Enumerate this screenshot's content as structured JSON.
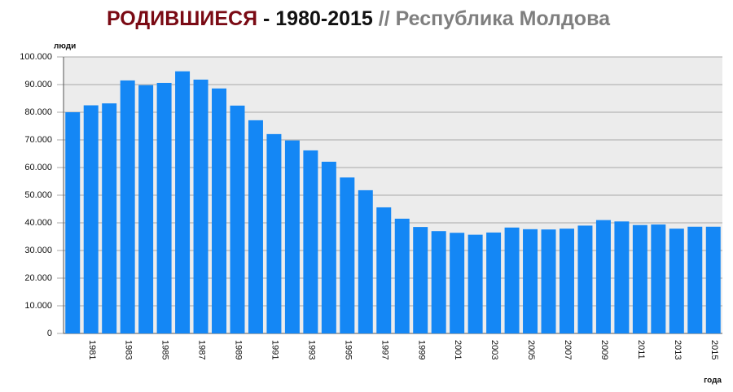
{
  "chart_data": {
    "type": "bar",
    "title": [
      "РОДИВШИЕСЯ",
      "- 1980-2015",
      "// Республика Молдова"
    ],
    "title_colors": [
      "#7a0a14",
      "#111111",
      "#7f7f7f"
    ],
    "y_label": "люди",
    "x_label": "года",
    "categories": [
      null,
      "1981",
      null,
      "1983",
      null,
      "1985",
      null,
      "1987",
      null,
      "1989",
      null,
      "1991",
      null,
      "1993",
      null,
      "1995",
      null,
      "1997",
      null,
      "1999",
      null,
      "2001",
      null,
      "2003",
      null,
      "2005",
      null,
      "2007",
      null,
      "2009",
      null,
      "2011",
      null,
      "2013",
      null,
      "2015"
    ],
    "values": [
      80000,
      82500,
      83200,
      91500,
      89800,
      90600,
      94800,
      91800,
      88600,
      82400,
      77100,
      72100,
      69800,
      66200,
      62100,
      56400,
      51800,
      45600,
      41500,
      38500,
      37000,
      36400,
      35700,
      36500,
      38300,
      37700,
      37600,
      37900,
      39000,
      41000,
      40500,
      39200,
      39400,
      37900,
      38600,
      38600
    ],
    "color": "#1487f5",
    "ylim": [
      0,
      100000
    ],
    "yticks": [
      {
        "value": 0,
        "label": "0"
      },
      {
        "value": 10000,
        "label": "10.000"
      },
      {
        "value": 20000,
        "label": "20.000"
      },
      {
        "value": 30000,
        "label": "30.000"
      },
      {
        "value": 40000,
        "label": "40.000"
      },
      {
        "value": 50000,
        "label": "50.000"
      },
      {
        "value": 60000,
        "label": "60.000"
      },
      {
        "value": 70000,
        "label": "70.000"
      },
      {
        "value": 80000,
        "label": "80.000"
      },
      {
        "value": 90000,
        "label": "90.000"
      },
      {
        "value": 100000,
        "label": "100.000"
      }
    ],
    "grid": true
  }
}
